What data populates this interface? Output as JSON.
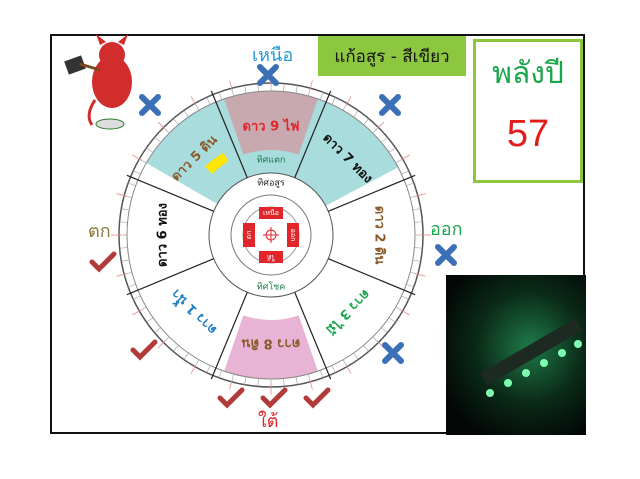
{
  "title": "แก้อสูร - สีเขียว",
  "power": {
    "label": "พลังปี",
    "value": "57"
  },
  "directions": {
    "north": "เหนือ",
    "east": "ออก",
    "south": "ใต้",
    "west": "ตก"
  },
  "sectors": [
    {
      "label": "ดาว 9 ไฟ",
      "color": "#e0262b"
    },
    {
      "label": "ดาว 7 ทอง",
      "color": "#111111"
    },
    {
      "label": "ดาว 2 ดิน",
      "color": "#8a5a2b"
    },
    {
      "label": "ดาว 3 ไม้",
      "color": "#1aa64a"
    },
    {
      "label": "ดาว 8 ดิน",
      "color": "#8a5a2b"
    },
    {
      "label": "ดาว 1 น้ำ",
      "color": "#1f7fc4"
    },
    {
      "label": "ดาว 6 ทอง",
      "color": "#111111"
    },
    {
      "label": "ดาว 5 ดิน",
      "color": "#8a5a2b"
    }
  ],
  "inner_labels": {
    "top": "ทิศแตก",
    "asura": "ทิศอสูร",
    "bottom": "ทิศโชค"
  },
  "hub_labels": {
    "north": "เหนือ",
    "east": "ออก",
    "south": "ใต้",
    "west": "ตก"
  },
  "colors": {
    "cross": "#3b6fb6",
    "check": "#b23a3a",
    "cyan_zone": "#a9dcdc",
    "north_zone": "#c9a9b0",
    "south_zone": "#e8b4d6"
  },
  "icons": {
    "bad": "cross-icon",
    "good": "check-icon"
  }
}
